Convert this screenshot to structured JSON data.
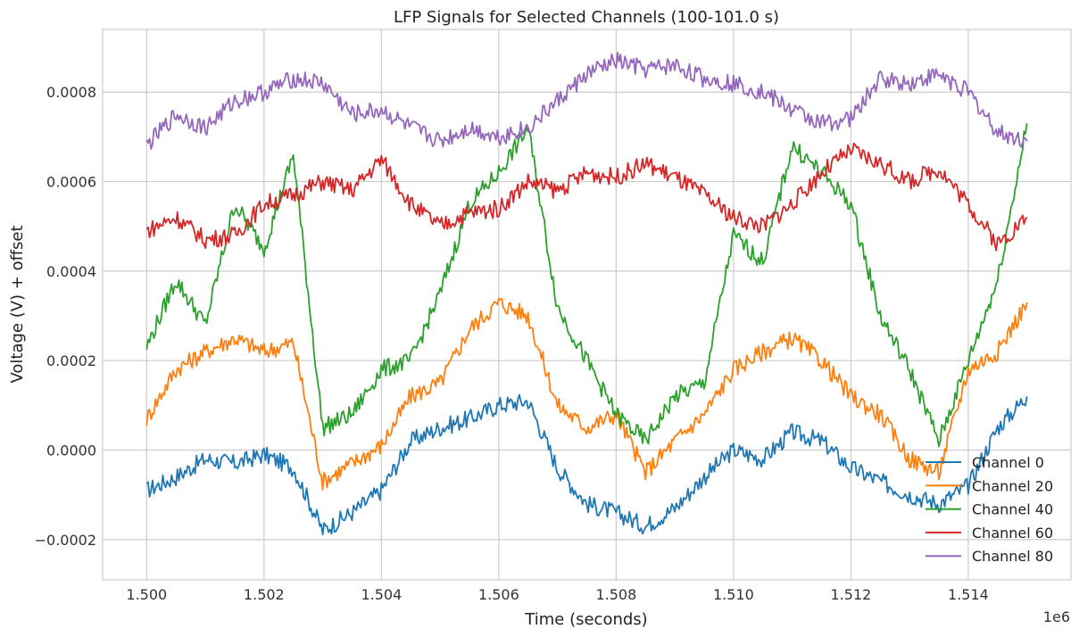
{
  "chart_data": {
    "type": "line",
    "title": "LFP Signals for Selected Channels (100-101.0 s)",
    "xlabel": "Time (seconds)",
    "ylabel": "Voltage (V) + offset",
    "x_offset_label": "1e6",
    "xlim": [
      1499250,
      1515750
    ],
    "ylim": [
      -0.00029,
      0.00094
    ],
    "x_ticks": [
      1500000,
      1502000,
      1504000,
      1506000,
      1508000,
      1510000,
      1512000,
      1514000
    ],
    "x_tick_labels": [
      "1.500",
      "1.502",
      "1.504",
      "1.506",
      "1.508",
      "1.510",
      "1.512",
      "1.514"
    ],
    "y_ticks": [
      -0.0002,
      0,
      0.0002,
      0.0004,
      0.0006,
      0.0008
    ],
    "y_tick_labels": [
      "−0.0002",
      "0.0000",
      "0.0002",
      "0.0004",
      "0.0006",
      "0.0008"
    ],
    "grid": true,
    "legend_position": "bottom-right",
    "series": [
      {
        "name": "Channel 0",
        "color": "#1f77b4",
        "x": [
          1500000,
          1500500,
          1501000,
          1501500,
          1502000,
          1502500,
          1503000,
          1503500,
          1504000,
          1504500,
          1505000,
          1505500,
          1506000,
          1506500,
          1507000,
          1507500,
          1508000,
          1508500,
          1509000,
          1509500,
          1510000,
          1510500,
          1511000,
          1511500,
          1512000,
          1512500,
          1513000,
          1513500,
          1514000,
          1514500,
          1515000
        ],
        "y": [
          -9e-05,
          -6e-05,
          -2e-05,
          -3e-05,
          -1e-05,
          -4e-05,
          -0.00018,
          -0.00014,
          -9e-05,
          2e-05,
          5e-05,
          7e-05,
          0.0001,
          0.00011,
          -4e-05,
          -0.00012,
          -0.00014,
          -0.00017,
          -0.00013,
          -6e-05,
          0.0,
          -2e-05,
          4e-05,
          2e-05,
          -4e-05,
          -7e-05,
          -0.0001,
          -0.00012,
          -8e-05,
          5e-05,
          0.00012
        ]
      },
      {
        "name": "Channel 20",
        "color": "#ff7f0e",
        "x": [
          1500000,
          1500500,
          1501000,
          1501500,
          1502000,
          1502500,
          1503000,
          1503500,
          1504000,
          1504500,
          1505000,
          1505500,
          1506000,
          1506500,
          1507000,
          1507500,
          1508000,
          1508500,
          1509000,
          1509500,
          1510000,
          1510500,
          1511000,
          1511500,
          1512000,
          1512500,
          1513000,
          1513500,
          1514000,
          1514500,
          1515000
        ],
        "y": [
          7e-05,
          0.00018,
          0.00022,
          0.00025,
          0.00022,
          0.00024,
          -7e-05,
          -3e-05,
          1e-05,
          0.00012,
          0.00015,
          0.00027,
          0.00033,
          0.0003,
          0.0001,
          5e-05,
          8e-05,
          -5e-05,
          2e-05,
          8e-05,
          0.00018,
          0.00022,
          0.00025,
          0.0002,
          0.00012,
          8e-05,
          -2e-05,
          -5e-05,
          0.00018,
          0.00022,
          0.00033
        ]
      },
      {
        "name": "Channel 40",
        "color": "#2ca02c",
        "x": [
          1500000,
          1500500,
          1501000,
          1501500,
          1502000,
          1502500,
          1503000,
          1503500,
          1504000,
          1504500,
          1505000,
          1505500,
          1506000,
          1506500,
          1507000,
          1507500,
          1508000,
          1508500,
          1509000,
          1509500,
          1510000,
          1510500,
          1511000,
          1511500,
          1512000,
          1512500,
          1513000,
          1513500,
          1514000,
          1514500,
          1515000
        ],
        "y": [
          0.00023,
          0.00038,
          0.00028,
          0.00055,
          0.00045,
          0.00066,
          5e-05,
          8e-05,
          0.00018,
          0.0002,
          0.00035,
          0.00055,
          0.00062,
          0.00072,
          0.00032,
          0.0002,
          8e-05,
          2e-05,
          0.00012,
          0.00015,
          0.00048,
          0.00042,
          0.00068,
          0.00062,
          0.00055,
          0.0003,
          0.00018,
          2e-05,
          0.0002,
          0.00038,
          0.00073
        ]
      },
      {
        "name": "Channel 60",
        "color": "#d62728",
        "x": [
          1500000,
          1500500,
          1501000,
          1501500,
          1502000,
          1502500,
          1503000,
          1503500,
          1504000,
          1504500,
          1505000,
          1505500,
          1506000,
          1506500,
          1507000,
          1507500,
          1508000,
          1508500,
          1509000,
          1509500,
          1510000,
          1510500,
          1511000,
          1511500,
          1512000,
          1512500,
          1513000,
          1513500,
          1514000,
          1514500,
          1515000
        ],
        "y": [
          0.00049,
          0.00052,
          0.00047,
          0.00048,
          0.00055,
          0.00057,
          0.0006,
          0.00058,
          0.00065,
          0.00055,
          0.0005,
          0.00053,
          0.00054,
          0.0006,
          0.00058,
          0.00062,
          0.00061,
          0.00064,
          0.00061,
          0.00057,
          0.00052,
          0.0005,
          0.00055,
          0.00062,
          0.00067,
          0.00064,
          0.0006,
          0.00063,
          0.00055,
          0.00046,
          0.00052
        ]
      },
      {
        "name": "Channel 80",
        "color": "#9467bd",
        "x": [
          1500000,
          1500500,
          1501000,
          1501500,
          1502000,
          1502500,
          1503000,
          1503500,
          1504000,
          1504500,
          1505000,
          1505500,
          1506000,
          1506500,
          1507000,
          1507500,
          1508000,
          1508500,
          1509000,
          1509500,
          1510000,
          1510500,
          1511000,
          1511500,
          1512000,
          1512500,
          1513000,
          1513500,
          1514000,
          1514500,
          1515000
        ],
        "y": [
          0.00068,
          0.00075,
          0.00072,
          0.00078,
          0.0008,
          0.00083,
          0.00082,
          0.00075,
          0.00076,
          0.00072,
          0.00069,
          0.00072,
          0.0007,
          0.00072,
          0.00078,
          0.00084,
          0.00087,
          0.00085,
          0.00086,
          0.00083,
          0.00082,
          0.0008,
          0.00076,
          0.00073,
          0.00074,
          0.00083,
          0.00082,
          0.00084,
          0.0008,
          0.00071,
          0.00069
        ]
      }
    ]
  }
}
